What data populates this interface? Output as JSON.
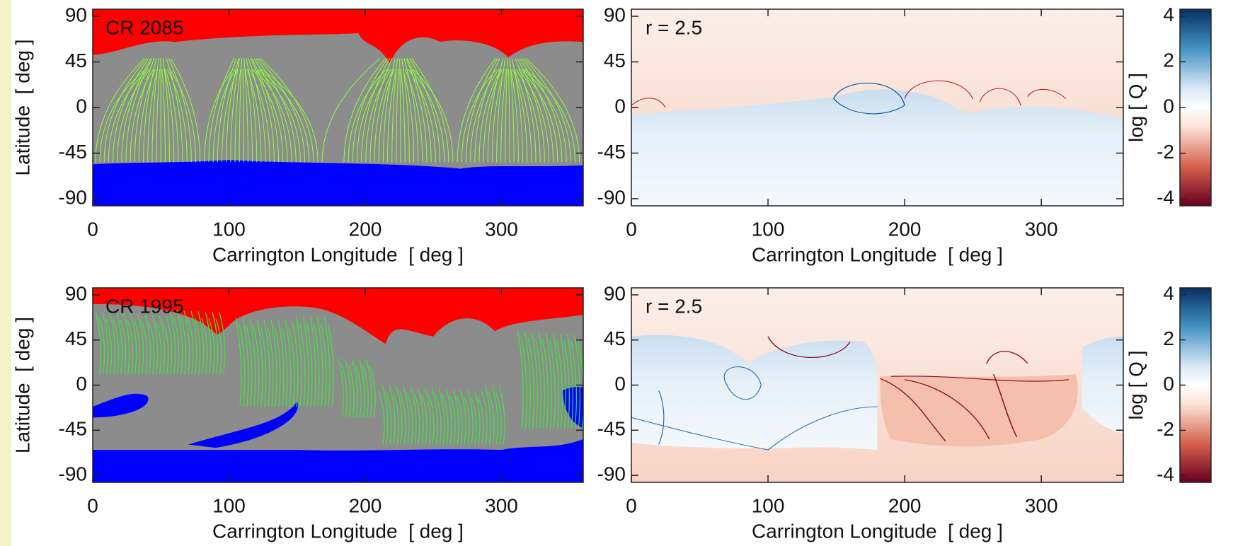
{
  "chart_data": [
    {
      "type": "map",
      "label": "CR 2085",
      "xlabel": "Carrington Longitude  [ deg ]",
      "ylabel": "Latitude  [ deg ]",
      "xlim": [
        0,
        360
      ],
      "xticks": [
        0,
        100,
        200,
        300
      ],
      "ylim": [
        -97,
        97
      ],
      "yticks": [
        90,
        45,
        0,
        -45,
        -90
      ]
    },
    {
      "type": "map",
      "label": "r = 2.5",
      "xlabel": "Carrington Longitude  [ deg ]",
      "xlim": [
        0,
        360
      ],
      "xticks": [
        0,
        100,
        200,
        300
      ],
      "ylim": [
        -97,
        97
      ],
      "yticks": [
        90,
        45,
        0,
        -45,
        -90
      ]
    },
    {
      "type": "colorbar",
      "ylabel": "log [ Q ]",
      "ylim": [
        -4.3,
        4.3
      ],
      "yticks": [
        4,
        2,
        0,
        -2,
        -4
      ]
    },
    {
      "type": "map",
      "label": "CR 1995",
      "xlabel": "Carrington Longitude  [ deg ]",
      "ylabel": "Latitude  [ deg ]",
      "xlim": [
        0,
        360
      ],
      "xticks": [
        0,
        100,
        200,
        300
      ],
      "ylim": [
        -97,
        97
      ],
      "yticks": [
        90,
        45,
        0,
        -45,
        -90
      ]
    },
    {
      "type": "map",
      "label": "r = 2.5",
      "xlabel": "Carrington Longitude  [ deg ]",
      "xlim": [
        0,
        360
      ],
      "xticks": [
        0,
        100,
        200,
        300
      ],
      "ylim": [
        -97,
        97
      ],
      "yticks": [
        90,
        45,
        0,
        -45,
        -90
      ]
    },
    {
      "type": "colorbar",
      "ylabel": "log [ Q ]",
      "ylim": [
        -4.3,
        4.3
      ],
      "yticks": [
        4,
        2,
        0,
        -2,
        -4
      ]
    }
  ]
}
